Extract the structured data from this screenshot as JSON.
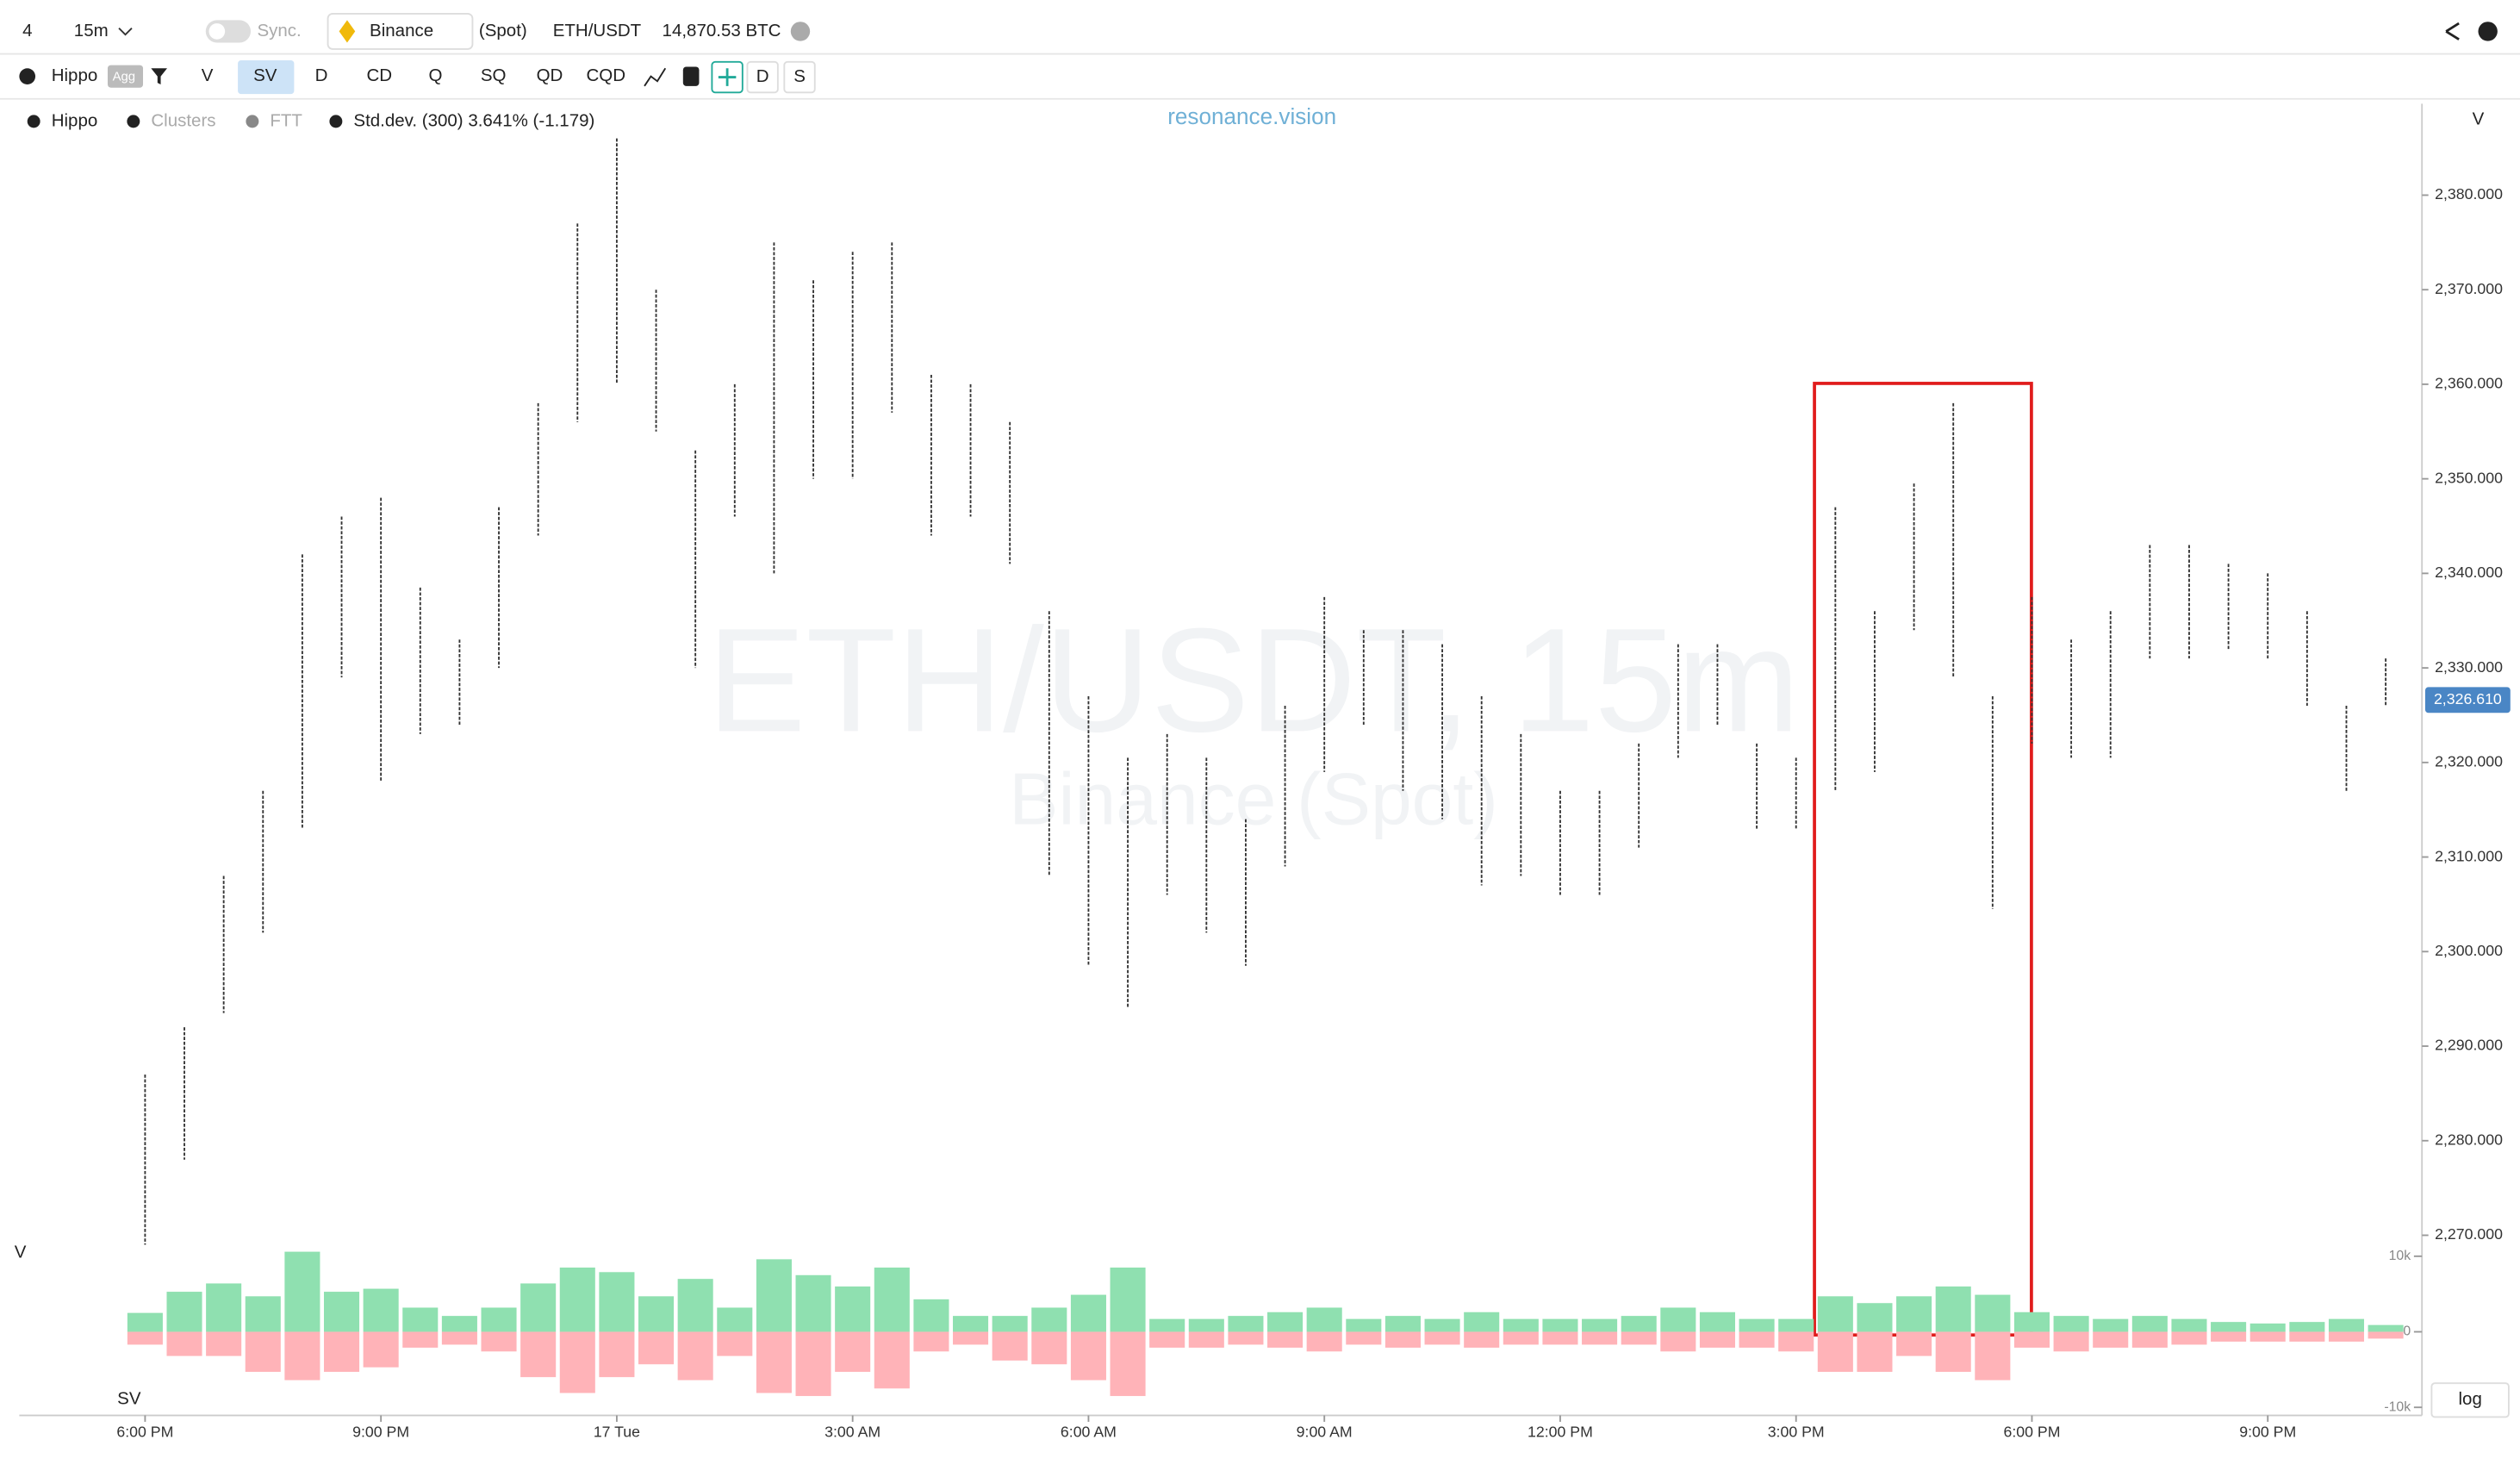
{
  "toolbar": {
    "layouts": "4",
    "timeframe": "15m",
    "sync": "Sync.",
    "exchange": "Binance",
    "market": "(Spot)",
    "pair": "ETH/USDT",
    "volume": "14,870.53 BTC"
  },
  "indicator_bar": {
    "name": "Hippo",
    "badge": "Agg",
    "buttons": [
      "V",
      "SV",
      "D",
      "CD",
      "Q",
      "SQ",
      "QD",
      "CQD",
      "D",
      "S"
    ],
    "active": "SV"
  },
  "legend": {
    "items": [
      "Hippo",
      "Clusters",
      "FTT",
      "Std.dev. (300) 3.641% (-1.179)"
    ]
  },
  "watermark": "resonance.vision",
  "log_button": "log",
  "chart_data": {
    "type": "candlestick",
    "title": "ETH/USDT, 15m",
    "subtitle": "Binance (Spot)",
    "axis_label": "V",
    "color": "#333333",
    "x": [
      0,
      0.5,
      1,
      1.5,
      2,
      2.5,
      3,
      3.5,
      4,
      4.5,
      5,
      5.5,
      6,
      6.5,
      7,
      7.5,
      8,
      8.5,
      9,
      9.5,
      10,
      10.5,
      11,
      11.5,
      12,
      12.5,
      13,
      13.5,
      14,
      14.5,
      15,
      15.5,
      16,
      16.5,
      17,
      17.5,
      18,
      18.5,
      19,
      19.5,
      20,
      20.5,
      21,
      21.5,
      22,
      22.5,
      23,
      23.5,
      24,
      24.5,
      25,
      25.5,
      26,
      26.5,
      27,
      27.5,
      28,
      28.5
    ],
    "high": [
      2287,
      2292,
      2308,
      2317,
      2342,
      2346,
      2348,
      2338.5,
      2333,
      2347,
      2358,
      2377,
      2386,
      2370,
      2353,
      2360,
      2375,
      2371,
      2374,
      2375,
      2361,
      2360,
      2356,
      2336,
      2327,
      2320.5,
      2323,
      2320.5,
      2314,
      2326,
      2337.5,
      2334,
      2334,
      2332.5,
      2327,
      2323,
      2317,
      2317,
      2322,
      2332.5,
      2332.5,
      2322,
      2320.5,
      2347,
      2336,
      2349.5,
      2358,
      2327,
      2337.5,
      2333,
      2336,
      2343,
      2343,
      2341,
      2340,
      2336,
      2326,
      2331
    ],
    "low": [
      2269,
      2278,
      2293.5,
      2302,
      2313,
      2329,
      2318,
      2323,
      2324,
      2330,
      2344,
      2356,
      2360,
      2355,
      2330,
      2346,
      2340,
      2350,
      2350,
      2357,
      2344,
      2346,
      2341,
      2308,
      2298.5,
      2294,
      2306,
      2302,
      2298.5,
      2309,
      2319,
      2324,
      2317,
      2314,
      2307,
      2308,
      2306,
      2306,
      2311,
      2320.5,
      2324,
      2313,
      2313,
      2317,
      2319,
      2334,
      2329,
      2304.5,
      2322,
      2320.5,
      2320.5,
      2331,
      2331,
      2332,
      2331,
      2326,
      2317,
      2326
    ],
    "xlim": [
      -1.6,
      28.9
    ],
    "xticks": [
      {
        "value": 0,
        "label": "6:00 PM"
      },
      {
        "value": 3,
        "label": "9:00 PM"
      },
      {
        "value": 6,
        "label": "17 Tue"
      },
      {
        "value": 9,
        "label": "3:00 AM"
      },
      {
        "value": 12,
        "label": "6:00 AM"
      },
      {
        "value": 15,
        "label": "9:00 AM"
      },
      {
        "value": 18,
        "label": "12:00 PM"
      },
      {
        "value": 21,
        "label": "3:00 PM"
      },
      {
        "value": 24,
        "label": "6:00 PM"
      },
      {
        "value": 27,
        "label": "9:00 PM"
      }
    ],
    "ylim": [
      2268.8,
      2389.5
    ],
    "yticks": [
      {
        "value": 2270,
        "label": "2,270.000"
      },
      {
        "value": 2280,
        "label": "2,280.000"
      },
      {
        "value": 2290,
        "label": "2,290.000"
      },
      {
        "value": 2300,
        "label": "2,300.000"
      },
      {
        "value": 2310,
        "label": "2,310.000"
      },
      {
        "value": 2320,
        "label": "2,320.000"
      },
      {
        "value": 2330,
        "label": "2,330.000"
      },
      {
        "value": 2340,
        "label": "2,340.000"
      },
      {
        "value": 2350,
        "label": "2,350.000"
      },
      {
        "value": 2360,
        "label": "2,360.000"
      },
      {
        "value": 2370,
        "label": "2,370.000"
      },
      {
        "value": 2380,
        "label": "2,380.000"
      }
    ],
    "last_price": {
      "value": 2326.61,
      "label": "2,326.610"
    },
    "volume_panel": {
      "label": "SV",
      "buy_color": "#8fe0b0",
      "sell_color": "#ffb3b8",
      "buy": [
        2500,
        5300,
        6400,
        4700,
        10600,
        5300,
        5700,
        3200,
        2100,
        3200,
        6400,
        8500,
        7900,
        4700,
        7000,
        3200,
        9600,
        7500,
        6000,
        8500,
        4300,
        2100,
        2100,
        3200,
        4900,
        8500,
        1700,
        1700,
        2100,
        2600,
        3200,
        1700,
        2100,
        1700,
        2600,
        1700,
        1700,
        1700,
        2100,
        3200,
        2600,
        1700,
        1700,
        4700,
        3800,
        4700,
        6000,
        4900,
        2600,
        2100,
        1700,
        2100,
        1700,
        1300,
        1100,
        1300,
        1700,
        900
      ],
      "sell": [
        -1700,
        -3200,
        -3200,
        -5300,
        -6400,
        -5300,
        -4700,
        -2100,
        -1700,
        -2600,
        -6000,
        -8100,
        -6000,
        -4300,
        -6400,
        -3200,
        -8100,
        -8500,
        -5300,
        -7500,
        -2600,
        -1700,
        -3800,
        -4300,
        -6400,
        -8500,
        -2100,
        -2100,
        -1700,
        -2100,
        -2600,
        -1700,
        -2100,
        -1700,
        -2100,
        -1700,
        -1700,
        -1700,
        -1700,
        -2600,
        -2100,
        -2100,
        -2600,
        -5300,
        -5300,
        -3200,
        -5300,
        -6400,
        -2100,
        -2600,
        -2100,
        -2100,
        -1700,
        -1300,
        -1300,
        -1300,
        -1300,
        -900
      ],
      "ylim": [
        -10000,
        10000
      ],
      "yticks": [
        {
          "value": -10000,
          "label": "-10k"
        },
        {
          "value": 0,
          "label": "0"
        },
        {
          "value": 10000,
          "label": "10k"
        }
      ]
    }
  }
}
